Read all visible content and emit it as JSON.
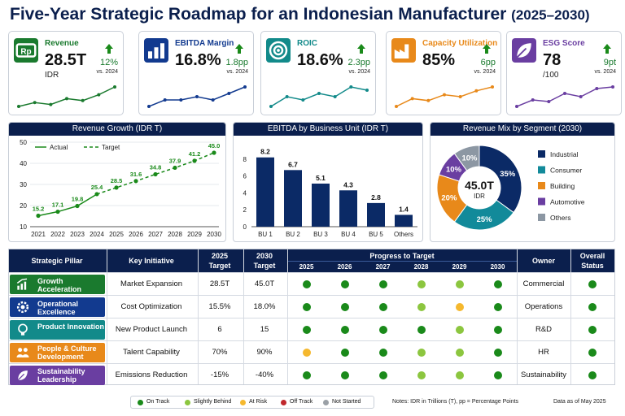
{
  "title": "Five-Year Strategic Roadmap for an Indonesian Manufacturer",
  "title_years": "(2025–2030)",
  "kpis": [
    {
      "label": "Revenue",
      "value": "28.5T",
      "unit": "IDR",
      "change": "12%",
      "vs": "vs. 2024",
      "color": "#1a7a2e",
      "icon": "money-icon",
      "spark": [
        4,
        5,
        4.5,
        6,
        5.5,
        7,
        9
      ]
    },
    {
      "label": "EBITDA Margin",
      "value": "16.8%",
      "unit": "",
      "change": "1.8pp",
      "vs": "vs. 2024",
      "color": "#123a8f",
      "icon": "bar-chart-icon",
      "spark": [
        3,
        5,
        5,
        6,
        5,
        7,
        9
      ]
    },
    {
      "label": "ROIC",
      "value": "18.6%",
      "unit": "",
      "change": "2.3pp",
      "vs": "vs. 2024",
      "color": "#128a8a",
      "icon": "target-icon",
      "spark": [
        3,
        6,
        5,
        7,
        6,
        9,
        8
      ]
    },
    {
      "label": "Capacity Utilization",
      "value": "85%",
      "unit": "",
      "change": "6pp",
      "vs": "vs. 2024",
      "color": "#e8891a",
      "icon": "factory-icon",
      "spark": [
        2,
        4,
        3.5,
        5,
        4.5,
        6,
        7
      ]
    },
    {
      "label": "ESG Score",
      "value": "78",
      "unit": "/100",
      "change": "9pt",
      "vs": "vs. 2024",
      "color": "#6a3ea1",
      "icon": "leaf-icon",
      "spark": [
        2,
        4,
        3.5,
        6,
        5,
        7.5,
        8
      ]
    }
  ],
  "chart_data": [
    {
      "type": "line",
      "title": "Revenue Growth (IDR T)",
      "x": [
        "2021",
        "2022",
        "2023",
        "2024",
        "2025",
        "2026",
        "2027",
        "2028",
        "2029",
        "2030"
      ],
      "series": [
        {
          "name": "Actual",
          "values": [
            15.2,
            17.1,
            19.8,
            25.4,
            null,
            null,
            null,
            null,
            null,
            null
          ]
        },
        {
          "name": "Target",
          "values": [
            null,
            null,
            null,
            25.4,
            28.5,
            31.6,
            34.8,
            37.9,
            41.2,
            45.0
          ]
        }
      ],
      "ylim": [
        10,
        50
      ],
      "yticks": [
        "10",
        "20",
        "30",
        "40",
        "50"
      ],
      "labels": [
        "15.2",
        "17.1",
        "19.8",
        "25.4",
        "28.5",
        "31.6",
        "34.8",
        "37.9",
        "41.2",
        "45.0"
      ],
      "legend": "top-left"
    },
    {
      "type": "bar",
      "title": "EBITDA by Business Unit (IDR T)",
      "categories": [
        "BU 1",
        "BU 2",
        "BU 3",
        "BU 4",
        "BU 5",
        "Others"
      ],
      "values": [
        8.2,
        6.7,
        5.1,
        4.3,
        2.8,
        1.4
      ],
      "ylim": [
        0,
        10
      ],
      "yticks": [
        "0",
        "2",
        "4",
        "6",
        "8"
      ]
    },
    {
      "type": "pie",
      "title": "Revenue Mix by Segment (2030)",
      "center_value": "45.0T",
      "center_unit": "IDR",
      "slices": [
        {
          "name": "Industrial",
          "value": 35,
          "label": "35%",
          "color": "#0b2a66"
        },
        {
          "name": "Consumer",
          "value": 25,
          "label": "25%",
          "color": "#128a9a"
        },
        {
          "name": "Building",
          "value": 20,
          "label": "20%",
          "color": "#e8891a"
        },
        {
          "name": "Automotive",
          "value": 10,
          "label": "10%",
          "color": "#6a3ea1"
        },
        {
          "name": "Others",
          "value": 10,
          "label": "10%",
          "color": "#8c97a3"
        }
      ]
    }
  ],
  "table": {
    "headers": {
      "pillar": "Strategic Pillar",
      "initiative": "Key Initiative",
      "t2025a": "2025",
      "t2025b": "Target",
      "t2030a": "2030",
      "t2030b": "Target",
      "progress": "Progress to Target",
      "owner": "Owner",
      "status_a": "Overall",
      "status_b": "Status"
    },
    "years": [
      "2025",
      "2026",
      "2027",
      "2028",
      "2029",
      "2030"
    ],
    "rows": [
      {
        "pillar": "Growth Acceleration",
        "pillar_color": "#1a7a2e",
        "icon": "growth-icon",
        "initiative": "Market Expansion",
        "t2025": "28.5T",
        "t2030": "45.0T",
        "progress": [
          "on",
          "on",
          "on",
          "slight",
          "slight",
          "on"
        ],
        "owner": "Commercial",
        "status": "on"
      },
      {
        "pillar": "Operational Excellence",
        "pillar_color": "#123a8f",
        "icon": "gear-icon",
        "initiative": "Cost Optimization",
        "t2025": "15.5%",
        "t2030": "18.0%",
        "progress": [
          "on",
          "on",
          "on",
          "slight",
          "risk",
          "on"
        ],
        "owner": "Operations",
        "status": "on"
      },
      {
        "pillar": "Product Innovation",
        "pillar_color": "#128a8a",
        "icon": "bulb-icon",
        "initiative": "New Product Launch",
        "t2025": "6",
        "t2030": "15",
        "progress": [
          "on",
          "on",
          "on",
          "on",
          "slight",
          "on"
        ],
        "owner": "R&D",
        "status": "on"
      },
      {
        "pillar": "People & Culture Development",
        "pillar_color": "#e8891a",
        "icon": "people-icon",
        "initiative": "Talent Capability",
        "t2025": "70%",
        "t2030": "90%",
        "progress": [
          "risk",
          "on",
          "on",
          "slight",
          "slight",
          "on"
        ],
        "owner": "HR",
        "status": "on"
      },
      {
        "pillar": "Sustainability Leadership",
        "pillar_color": "#6a3ea1",
        "icon": "leaf-icon",
        "initiative": "Emissions Reduction",
        "t2025": "-15%",
        "t2030": "-40%",
        "progress": [
          "on",
          "on",
          "on",
          "slight",
          "slight",
          "on"
        ],
        "owner": "Sustainability",
        "status": "on"
      }
    ]
  },
  "status_colors": {
    "on": "#1a8a1a",
    "slight": "#8cc63f",
    "risk": "#f5b82e",
    "off": "#c0282d",
    "not": "#9aa0a6"
  },
  "legend": [
    "On Track",
    "Slightly Behind",
    "At Risk",
    "Off Track",
    "Not Started"
  ],
  "notes": "Notes: IDR in Trillions (T), pp = Percentage Points",
  "data_as_of": "Data as of May 2025"
}
